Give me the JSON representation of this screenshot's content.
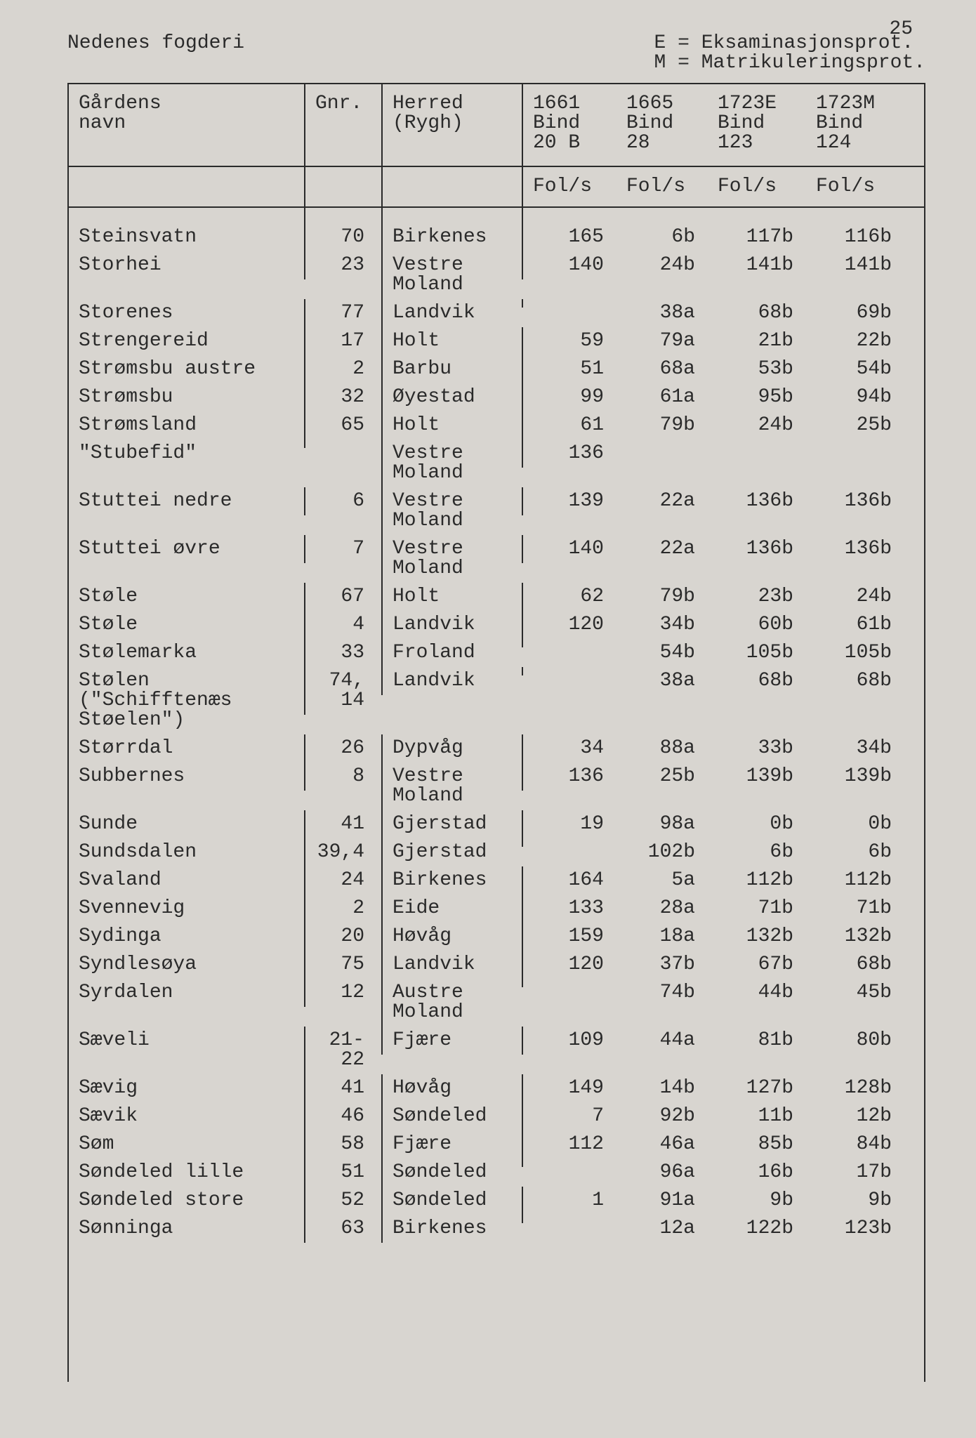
{
  "page_number": "25",
  "header": {
    "left": "Nedenes fogderi",
    "legend": [
      "E = Eksaminasjonsprot.",
      "M = Matrikuleringsprot."
    ]
  },
  "columns": {
    "name": "Gårdens\nnavn",
    "gnr": "Gnr.",
    "herred": "Herred\n(Rygh)",
    "c1661": "1661\nBind\n20 B",
    "c1665": "1665\nBind\n28",
    "c1723E": "1723E\nBind\n123",
    "c1723M": "1723M\nBind\n124"
  },
  "subhead": {
    "fol": "Fol/s"
  },
  "rows": [
    {
      "name": "Steinsvatn",
      "gnr": "70",
      "herred": "Birkenes",
      "v1": "165",
      "v2": "6b",
      "v3": "117b",
      "v4": "116b"
    },
    {
      "name": "Storhei",
      "gnr": "23",
      "herred": "Vestre\nMoland",
      "v1": "140",
      "v2": "24b",
      "v3": "141b",
      "v4": "141b"
    },
    {
      "name": "Storenes",
      "gnr": "77",
      "herred": "Landvik",
      "v1": "",
      "v2": "38a",
      "v3": "68b",
      "v4": "69b"
    },
    {
      "name": "Strengereid",
      "gnr": "17",
      "herred": "Holt",
      "v1": "59",
      "v2": "79a",
      "v3": "21b",
      "v4": "22b"
    },
    {
      "name": "Strømsbu austre",
      "gnr": "2",
      "herred": "Barbu",
      "v1": "51",
      "v2": "68a",
      "v3": "53b",
      "v4": "54b"
    },
    {
      "name": "Strømsbu",
      "gnr": "32",
      "herred": "Øyestad",
      "v1": "99",
      "v2": "61a",
      "v3": "95b",
      "v4": "94b"
    },
    {
      "name": "Strømsland",
      "gnr": "65",
      "herred": "Holt",
      "v1": "61",
      "v2": "79b",
      "v3": "24b",
      "v4": "25b"
    },
    {
      "name": "\"Stubefid\"",
      "gnr": "",
      "herred": "Vestre\nMoland",
      "v1": "136",
      "v2": "",
      "v3": "",
      "v4": ""
    },
    {
      "name": "Stuttei nedre",
      "gnr": "6",
      "herred": "Vestre\nMoland",
      "v1": "139",
      "v2": "22a",
      "v3": "136b",
      "v4": "136b"
    },
    {
      "name": "Stuttei øvre",
      "gnr": "7",
      "herred": "Vestre\nMoland",
      "v1": "140",
      "v2": "22a",
      "v3": "136b",
      "v4": "136b"
    },
    {
      "name": "Støle",
      "gnr": "67",
      "herred": "Holt",
      "v1": "62",
      "v2": "79b",
      "v3": "23b",
      "v4": "24b"
    },
    {
      "name": "Støle",
      "gnr": "4",
      "herred": "Landvik",
      "v1": "120",
      "v2": "34b",
      "v3": "60b",
      "v4": "61b"
    },
    {
      "name": "Stølemarka",
      "gnr": "33",
      "herred": "Froland",
      "v1": "",
      "v2": "54b",
      "v3": "105b",
      "v4": "105b"
    },
    {
      "name": "Stølen (\"Schifftenæs\nStøelen\")",
      "gnr": "74,\n14",
      "herred": "Landvik",
      "v1": "",
      "v2": "38a",
      "v3": "68b",
      "v4": "68b"
    },
    {
      "name": "Størrdal",
      "gnr": "26",
      "herred": "Dypvåg",
      "v1": "34",
      "v2": "88a",
      "v3": "33b",
      "v4": "34b"
    },
    {
      "name": "Subbernes",
      "gnr": "8",
      "herred": "Vestre\nMoland",
      "v1": "136",
      "v2": "25b",
      "v3": "139b",
      "v4": "139b"
    },
    {
      "name": "Sunde",
      "gnr": "41",
      "herred": "Gjerstad",
      "v1": "19",
      "v2": "98a",
      "v3": "0b",
      "v4": "0b"
    },
    {
      "name": "Sundsdalen",
      "gnr": "39,4",
      "herred": "Gjerstad",
      "v1": "",
      "v2": "102b",
      "v3": "6b",
      "v4": "6b"
    },
    {
      "name": "Svaland",
      "gnr": "24",
      "herred": "Birkenes",
      "v1": "164",
      "v2": "5a",
      "v3": "112b",
      "v4": "112b"
    },
    {
      "name": "Svennevig",
      "gnr": "2",
      "herred": "Eide",
      "v1": "133",
      "v2": "28a",
      "v3": "71b",
      "v4": "71b"
    },
    {
      "name": "Sydinga",
      "gnr": "20",
      "herred": "Høvåg",
      "v1": "159",
      "v2": "18a",
      "v3": "132b",
      "v4": "132b"
    },
    {
      "name": "Syndlesøya",
      "gnr": "75",
      "herred": "Landvik",
      "v1": "120",
      "v2": "37b",
      "v3": "67b",
      "v4": "68b"
    },
    {
      "name": "Syrdalen",
      "gnr": "12",
      "herred": "Austre\nMoland",
      "v1": "",
      "v2": "74b",
      "v3": "44b",
      "v4": "45b"
    },
    {
      "name": "Sæveli",
      "gnr": "21-\n22",
      "herred": "Fjære",
      "v1": "109",
      "v2": "44a",
      "v3": "81b",
      "v4": "80b"
    },
    {
      "name": "Sævig",
      "gnr": "41",
      "herred": "Høvåg",
      "v1": "149",
      "v2": "14b",
      "v3": "127b",
      "v4": "128b"
    },
    {
      "name": "Sævik",
      "gnr": "46",
      "herred": "Søndeled",
      "v1": "7",
      "v2": "92b",
      "v3": "11b",
      "v4": "12b"
    },
    {
      "name": "Søm",
      "gnr": "58",
      "herred": "Fjære",
      "v1": "112",
      "v2": "46a",
      "v3": "85b",
      "v4": "84b"
    },
    {
      "name": "Søndeled lille",
      "gnr": "51",
      "herred": "Søndeled",
      "v1": "",
      "v2": "96a",
      "v3": "16b",
      "v4": "17b"
    },
    {
      "name": "Søndeled store",
      "gnr": "52",
      "herred": "Søndeled",
      "v1": "1",
      "v2": "91a",
      "v3": "9b",
      "v4": "9b"
    },
    {
      "name": "Sønninga",
      "gnr": "63",
      "herred": "Birkenes",
      "v1": "",
      "v2": "12a",
      "v3": "122b",
      "v4": "123b"
    }
  ],
  "colors": {
    "background": "#d8d5d0",
    "text": "#2a2a2a",
    "border": "#2a2a2a"
  },
  "font": {
    "family": "Courier New",
    "size_pt": 21
  }
}
